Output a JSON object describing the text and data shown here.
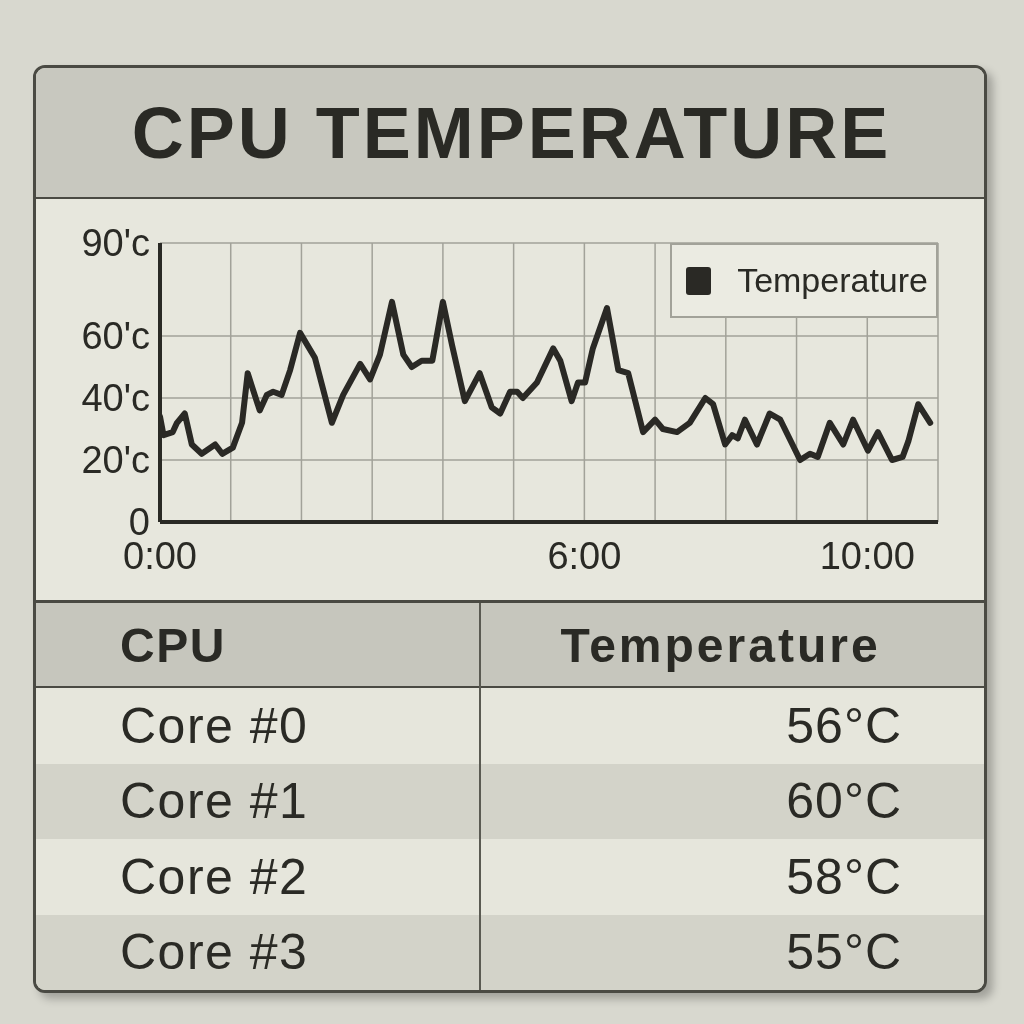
{
  "chart_data": [
    {
      "type": "line",
      "title": "CPU TEMPERATURE",
      "x": [
        0,
        0.05,
        0.18,
        0.24,
        0.35,
        0.45,
        0.59,
        0.78,
        0.88,
        1.03,
        1.16,
        1.24,
        1.31,
        1.41,
        1.51,
        1.6,
        1.72,
        1.84,
        1.98,
        2.19,
        2.43,
        2.59,
        2.83,
        2.97,
        3.11,
        3.28,
        3.44,
        3.56,
        3.7,
        3.85,
        4,
        4.13,
        4.31,
        4.52,
        4.69,
        4.81,
        4.95,
        5.05,
        5.13,
        5.33,
        5.56,
        5.66,
        5.82,
        5.91,
        6.01,
        6.12,
        6.32,
        6.48,
        6.62,
        6.83,
        7,
        7.11,
        7.31,
        7.49,
        7.71,
        7.82,
        7.99,
        8.09,
        8.17,
        8.27,
        8.44,
        8.62,
        8.77,
        9.05,
        9.19,
        9.3,
        9.47,
        9.66,
        9.8,
        10.01,
        10.15,
        10.35,
        10.5,
        10.58,
        10.72,
        10.89
      ],
      "series": [
        {
          "name": "Temperature",
          "color": "#2a2925",
          "values": [
            34,
            28,
            29,
            32,
            35,
            25,
            22,
            25,
            22,
            24,
            32,
            48,
            43,
            36,
            41,
            42,
            41,
            49,
            61,
            53,
            32,
            41,
            51,
            46,
            54,
            71,
            54,
            50,
            52,
            52,
            71,
            57,
            39,
            48,
            37,
            35,
            42,
            42,
            40,
            45,
            56,
            52,
            39,
            45,
            45,
            56,
            69,
            49,
            48,
            29,
            33,
            30,
            29,
            32,
            40,
            38,
            25,
            28,
            27,
            33,
            25,
            35,
            33,
            20,
            22,
            21,
            32,
            25,
            33,
            23,
            29,
            20,
            21,
            26,
            38,
            32
          ]
        }
      ],
      "xlim": [
        0,
        11
      ],
      "xticks": [
        {
          "value": 0,
          "label": "0:00"
        },
        {
          "value": 1,
          "label": null
        },
        {
          "value": 2,
          "label": null
        },
        {
          "value": 3,
          "label": null
        },
        {
          "value": 4,
          "label": null
        },
        {
          "value": 5,
          "label": null
        },
        {
          "value": 6,
          "label": "6:00"
        },
        {
          "value": 7,
          "label": null
        },
        {
          "value": 8,
          "label": null
        },
        {
          "value": 9,
          "label": null
        },
        {
          "value": 10,
          "label": "10:00"
        },
        {
          "value": 11,
          "label": null
        }
      ],
      "ylim": [
        0,
        90
      ],
      "yticks": [
        0,
        {
          "value": 20,
          "label": "20'c"
        },
        {
          "value": 40,
          "label": "40'c"
        },
        {
          "value": 60,
          "label": "60'c"
        },
        {
          "value": 90,
          "label": "90'c"
        }
      ],
      "grid": true,
      "legend": "top right"
    },
    {
      "type": "heatmap",
      "ylabel": "CPU",
      "categories": [
        "Temperature"
      ],
      "y_categories": [
        "Core #0",
        "Core #1",
        "Core #2",
        "Core #3"
      ],
      "cells": [
        [
          56
        ],
        [
          60
        ],
        [
          58
        ],
        [
          55
        ]
      ],
      "cell_labels": [
        [
          "56°C"
        ],
        [
          "60°C"
        ],
        [
          "58°C"
        ],
        [
          "55°C"
        ]
      ]
    }
  ]
}
